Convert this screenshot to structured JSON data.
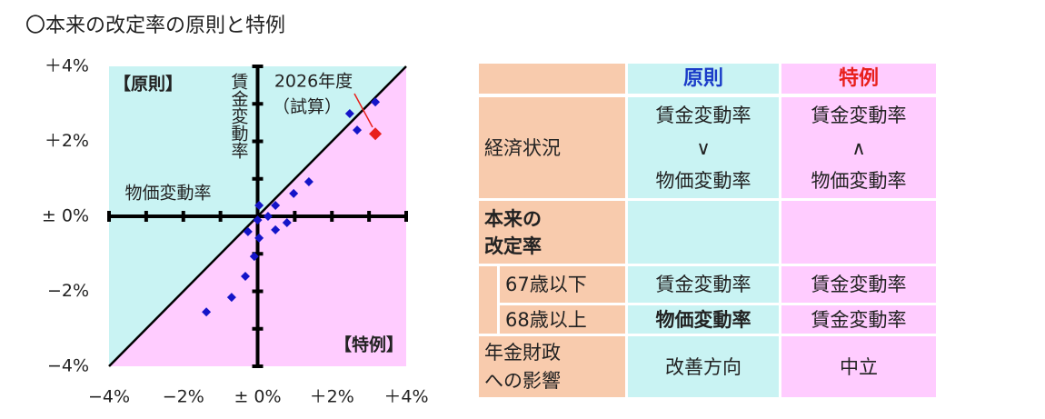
{
  "title": "〇本来の改定率の原則と特例",
  "chart_data": {
    "type": "scatter",
    "series": [
      {
        "color": "#1414c8",
        "x": [
          3.17,
          2.48,
          2.68,
          1.38,
          0.97,
          0.04,
          0.48,
          0.28,
          0,
          0.48,
          0.79,
          -0.26,
          0.04,
          -0.09,
          -0.33,
          -0.7,
          -1.38
        ],
        "y": [
          3.05,
          2.74,
          2.3,
          0.92,
          0.61,
          0.29,
          0.29,
          0,
          -0.1,
          -0.36,
          -0.17,
          -0.41,
          -0.58,
          -1.07,
          -1.6,
          -2.16,
          -2.55
        ]
      },
      {
        "color": "#e8201c",
        "x": [
          3.17
        ],
        "y": [
          2.2
        ]
      }
    ],
    "xlim": [
      -4,
      4
    ],
    "ylim": [
      -4,
      4
    ],
    "xticks": [
      {
        "value": -4,
        "label": "−4%"
      },
      {
        "value": -2,
        "label": "−2%"
      },
      {
        "value": 0,
        "label": "± 0%"
      },
      {
        "value": 2,
        "label": "＋2%"
      },
      {
        "value": 4,
        "label": "＋4%"
      }
    ],
    "yticks": [
      {
        "value": 4,
        "label": "＋4%"
      },
      {
        "value": 2,
        "label": "＋2%"
      },
      {
        "value": 0,
        "label": "± 0%"
      },
      {
        "value": -2,
        "label": "−2%"
      },
      {
        "value": -4,
        "label": "−4%"
      }
    ],
    "minor_ticks": [
      -3,
      -1,
      1,
      3
    ],
    "region_labels": [
      "【原則】",
      "【特例】"
    ],
    "x_label": "物価変動率",
    "y_label": "賃金変動率",
    "point_note": [
      "2026年度",
      "（試算）"
    ]
  },
  "table": {
    "header": [
      "原則",
      "特例"
    ],
    "rows": [
      {
        "label": [
          "経済状況"
        ],
        "cells": [
          [
            "賃金変動率",
            "∨",
            "物価変動率"
          ],
          [
            "賃金変動率",
            "∧",
            "物価変動率"
          ]
        ]
      },
      {
        "label": [
          "本来の",
          "改定率"
        ]
      },
      {
        "label": [
          "67歳以下"
        ],
        "cells": [
          [
            "賃金変動率"
          ],
          [
            "賃金変動率"
          ]
        ]
      },
      {
        "label": [
          "68歳以上"
        ],
        "cells": [
          [
            "物価変動率"
          ],
          [
            "賃金変動率"
          ]
        ]
      },
      {
        "label": [
          "年金財政",
          "への影響"
        ],
        "cells": [
          [
            "改善方向"
          ],
          [
            "中立"
          ]
        ]
      }
    ]
  }
}
